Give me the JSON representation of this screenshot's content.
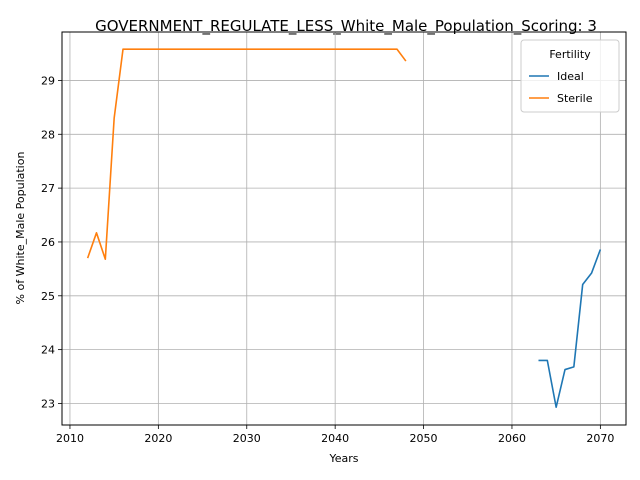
{
  "chart_data": {
    "type": "line",
    "title": "GOVERNMENT_REGULATE_LESS_White_Male_Population_Scoring: 3",
    "xlabel": "Years",
    "ylabel": "% of White_Male Population",
    "xlim": [
      2009.1,
      2072.9
    ],
    "ylim": [
      22.6,
      29.9
    ],
    "xticks": [
      2010,
      2020,
      2030,
      2040,
      2050,
      2060,
      2070
    ],
    "yticks": [
      23,
      24,
      25,
      26,
      27,
      28,
      29
    ],
    "grid": true,
    "legend": {
      "title": "Fertility",
      "placement": "top-right"
    },
    "series": [
      {
        "name": "Ideal",
        "color": "#1f77b4",
        "x": [
          2063,
          2064,
          2065,
          2066,
          2067,
          2068,
          2069,
          2070
        ],
        "y": [
          23.8,
          23.8,
          22.93,
          23.63,
          23.68,
          25.21,
          25.42,
          25.86
        ]
      },
      {
        "name": "Sterile",
        "color": "#ff7f0e",
        "x": [
          2012,
          2013,
          2014,
          2015,
          2016,
          2017,
          2018,
          2019,
          2020,
          2021,
          2022,
          2023,
          2024,
          2025,
          2026,
          2027,
          2028,
          2029,
          2030,
          2031,
          2032,
          2033,
          2034,
          2035,
          2036,
          2037,
          2038,
          2039,
          2040,
          2041,
          2042,
          2043,
          2044,
          2045,
          2046,
          2047,
          2048
        ],
        "y": [
          25.7,
          26.17,
          25.68,
          28.3,
          29.58,
          29.58,
          29.58,
          29.58,
          29.58,
          29.58,
          29.58,
          29.58,
          29.58,
          29.58,
          29.58,
          29.58,
          29.58,
          29.58,
          29.58,
          29.58,
          29.58,
          29.58,
          29.58,
          29.58,
          29.58,
          29.58,
          29.58,
          29.58,
          29.58,
          29.58,
          29.58,
          29.58,
          29.58,
          29.58,
          29.58,
          29.58,
          29.36
        ]
      }
    ]
  }
}
